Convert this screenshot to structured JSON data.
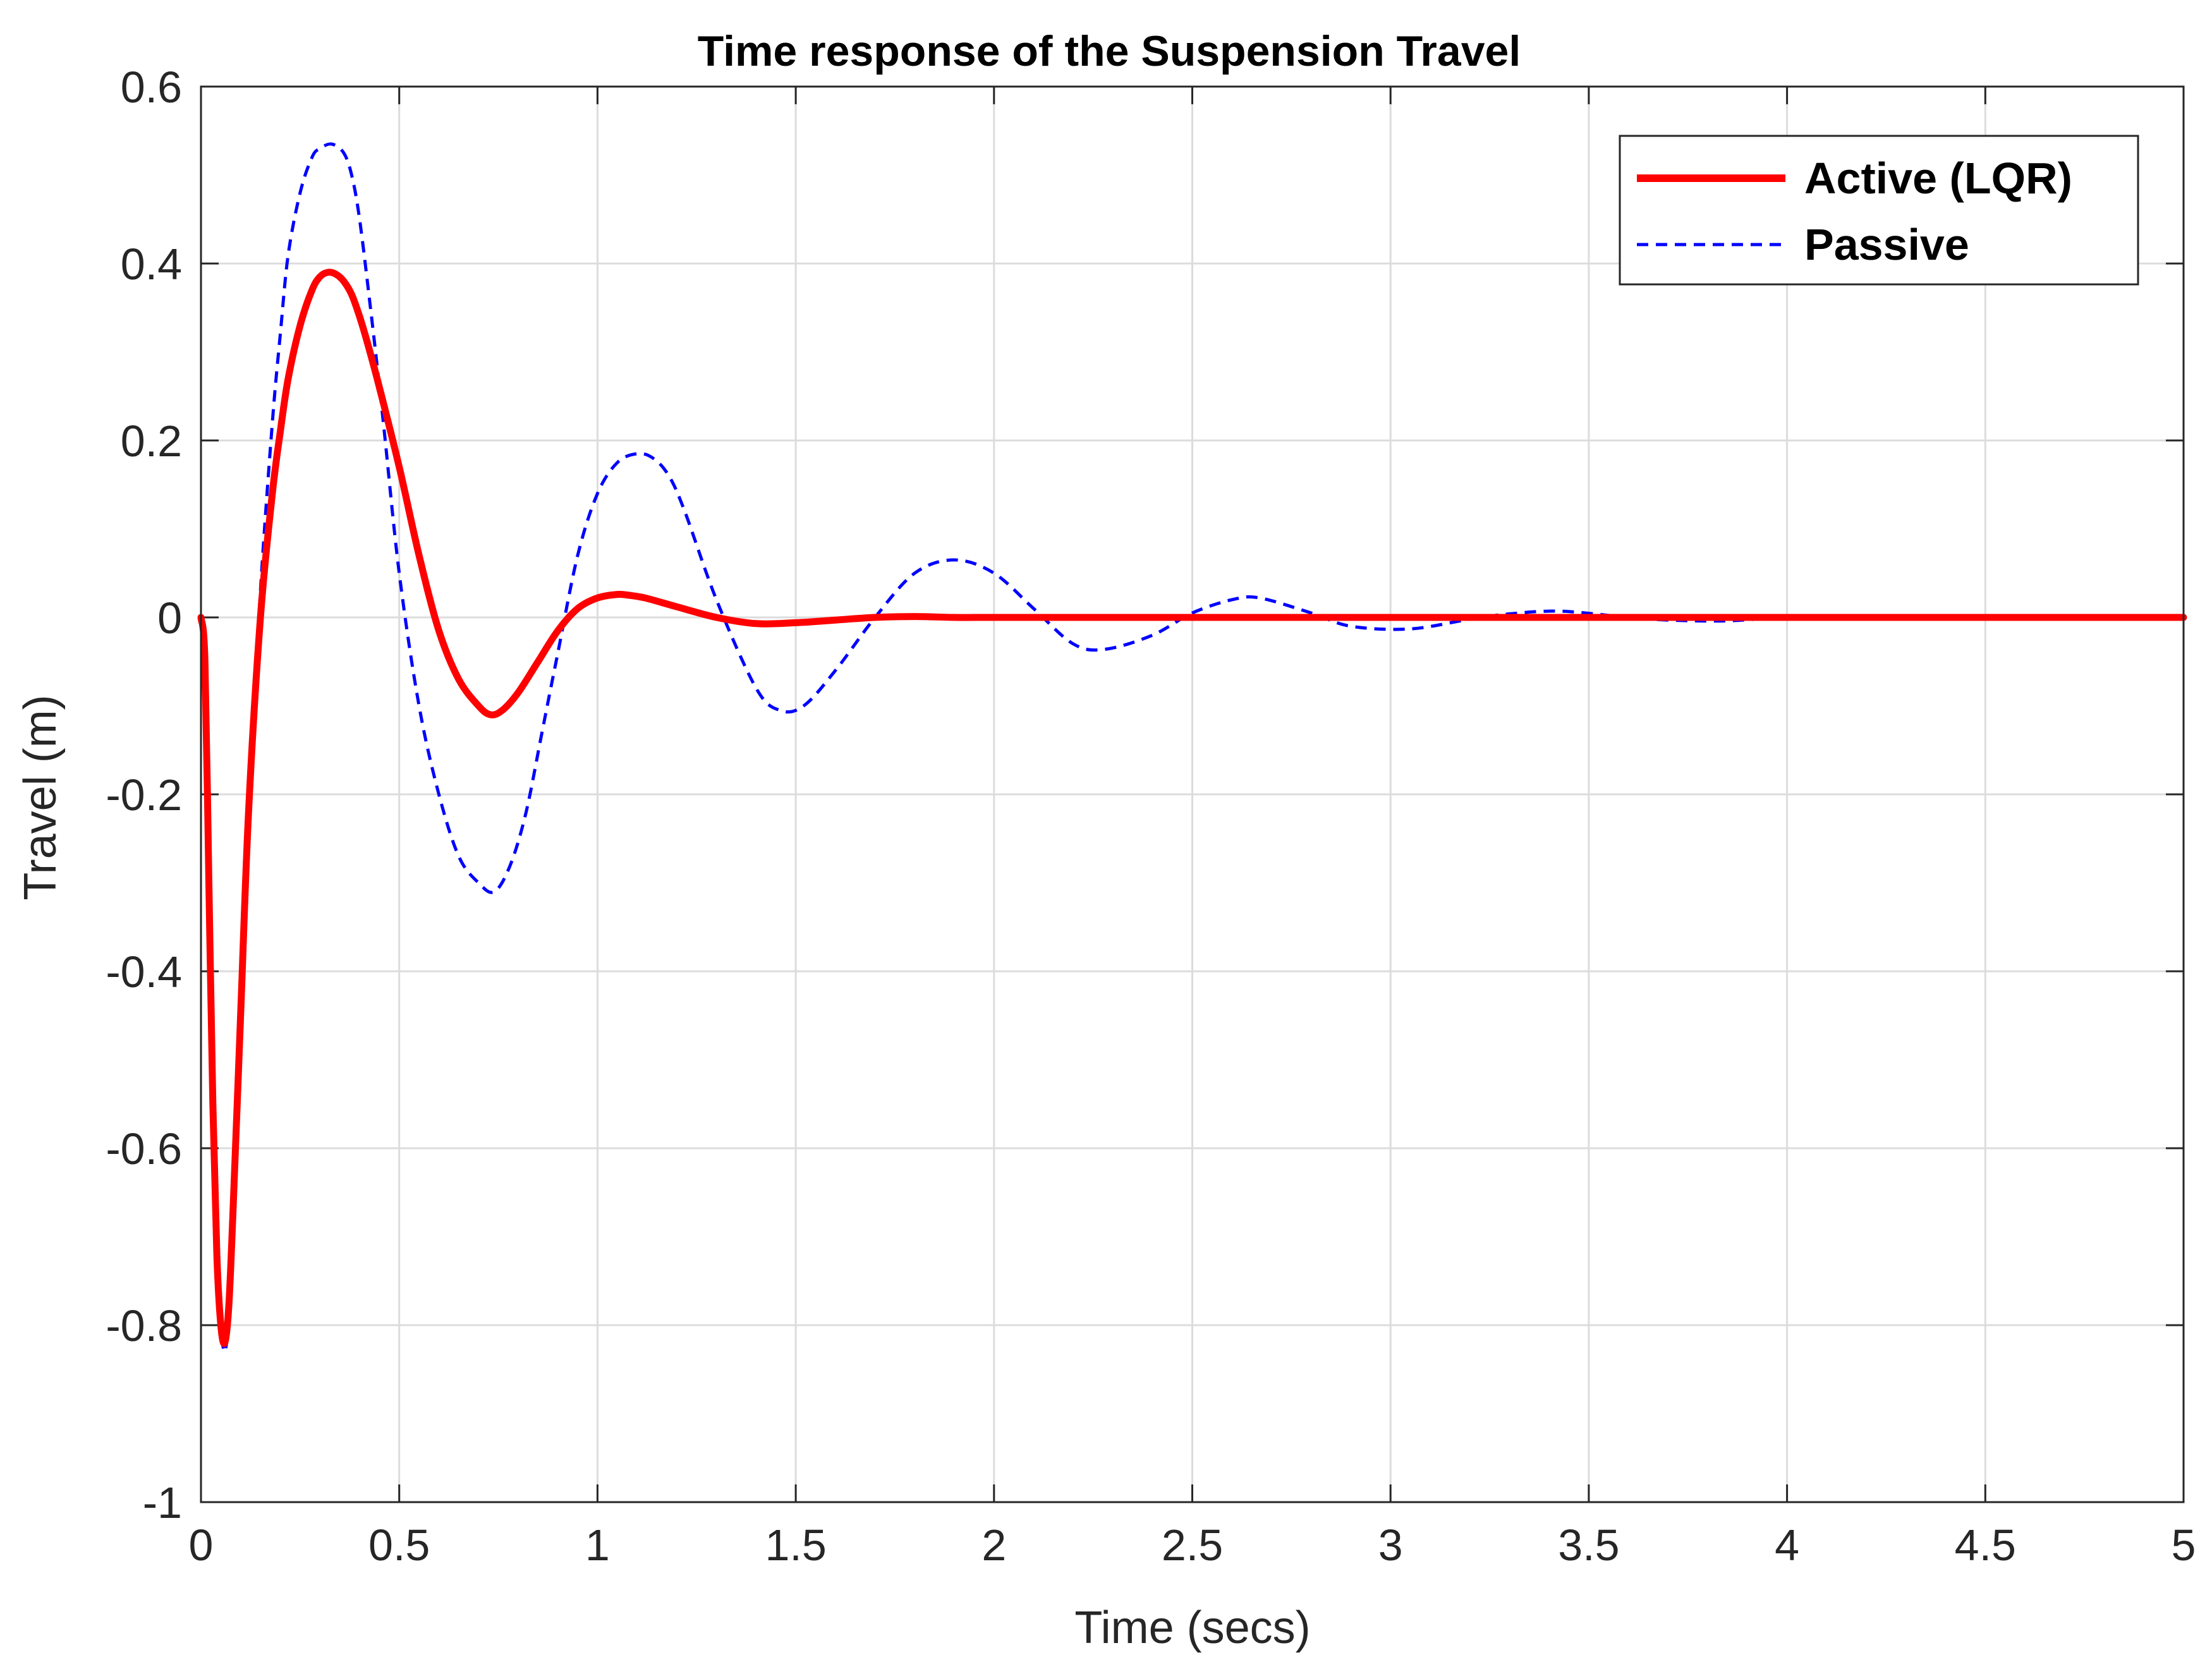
{
  "chart_data": {
    "type": "line",
    "title": "Time response of the Suspension Travel",
    "xlabel": "Time (secs)",
    "ylabel": "Travel (m)",
    "xlim": [
      0,
      5
    ],
    "ylim": [
      -1,
      0.6
    ],
    "xticks": [
      0,
      0.5,
      1,
      1.5,
      2,
      2.5,
      3,
      3.5,
      4,
      4.5,
      5
    ],
    "xtick_labels": [
      "0",
      "0.5",
      "1",
      "1.5",
      "2",
      "2.5",
      "3",
      "3.5",
      "4",
      "4.5",
      "5"
    ],
    "yticks": [
      -1,
      -0.8,
      -0.6,
      -0.4,
      -0.2,
      0,
      0.2,
      0.4,
      0.6
    ],
    "ytick_labels": [
      "-1",
      "-0.8",
      "-0.6",
      "-0.4",
      "-0.2",
      "0",
      "0.2",
      "0.4",
      "0.6"
    ],
    "grid": true,
    "legend_position": "top-right",
    "series": [
      {
        "name": "Active (LQR)",
        "color": "#ff0000",
        "style": "solid",
        "x": [
          0,
          0.01,
          0.02,
          0.03,
          0.04,
          0.05,
          0.06,
          0.07,
          0.08,
          0.1,
          0.12,
          0.15,
          0.18,
          0.2,
          0.22,
          0.25,
          0.28,
          0.3,
          0.32,
          0.34,
          0.36,
          0.38,
          0.4,
          0.42,
          0.45,
          0.5,
          0.55,
          0.6,
          0.65,
          0.7,
          0.73,
          0.76,
          0.8,
          0.85,
          0.9,
          0.95,
          1.0,
          1.05,
          1.08,
          1.12,
          1.2,
          1.3,
          1.4,
          1.5,
          1.6,
          1.7,
          1.8,
          1.9,
          2.0,
          2.2,
          2.5,
          3.0,
          3.5,
          4.0,
          4.5,
          5.0
        ],
        "y": [
          0,
          -0.05,
          -0.3,
          -0.55,
          -0.72,
          -0.8,
          -0.82,
          -0.78,
          -0.68,
          -0.45,
          -0.22,
          0.0,
          0.14,
          0.21,
          0.27,
          0.33,
          0.37,
          0.385,
          0.39,
          0.388,
          0.38,
          0.365,
          0.34,
          0.31,
          0.26,
          0.17,
          0.07,
          -0.015,
          -0.07,
          -0.1,
          -0.11,
          -0.105,
          -0.085,
          -0.05,
          -0.015,
          0.01,
          0.022,
          0.026,
          0.025,
          0.022,
          0.012,
          0.0,
          -0.007,
          -0.006,
          -0.003,
          0.0,
          0.001,
          0.0,
          0.0,
          0.0,
          0.0,
          0.0,
          0.0,
          0.0,
          0.0,
          0.0
        ]
      },
      {
        "name": "Passive",
        "color": "#0000ff",
        "style": "dashed",
        "x": [
          0,
          0.01,
          0.02,
          0.03,
          0.04,
          0.05,
          0.06,
          0.07,
          0.08,
          0.1,
          0.12,
          0.15,
          0.18,
          0.2,
          0.22,
          0.25,
          0.28,
          0.3,
          0.33,
          0.36,
          0.38,
          0.4,
          0.43,
          0.46,
          0.5,
          0.55,
          0.6,
          0.65,
          0.7,
          0.74,
          0.78,
          0.82,
          0.86,
          0.9,
          0.95,
          1.0,
          1.05,
          1.1,
          1.14,
          1.18,
          1.22,
          1.3,
          1.4,
          1.46,
          1.52,
          1.6,
          1.7,
          1.8,
          1.9,
          2.0,
          2.1,
          2.2,
          2.28,
          2.4,
          2.5,
          2.6,
          2.67,
          2.8,
          2.9,
          3.05,
          3.2,
          3.3,
          3.43,
          3.6,
          3.7,
          3.84,
          4.0,
          4.2,
          4.4,
          4.6,
          4.8,
          5.0
        ],
        "y": [
          0,
          -0.05,
          -0.3,
          -0.55,
          -0.72,
          -0.8,
          -0.83,
          -0.79,
          -0.69,
          -0.46,
          -0.22,
          0.03,
          0.22,
          0.32,
          0.41,
          0.48,
          0.52,
          0.53,
          0.535,
          0.525,
          0.5,
          0.45,
          0.34,
          0.22,
          0.05,
          -0.1,
          -0.2,
          -0.27,
          -0.3,
          -0.31,
          -0.28,
          -0.22,
          -0.13,
          -0.04,
          0.07,
          0.14,
          0.175,
          0.185,
          0.18,
          0.16,
          0.12,
          0.02,
          -0.08,
          -0.105,
          -0.1,
          -0.06,
          0.0,
          0.05,
          0.065,
          0.05,
          0.01,
          -0.03,
          -0.036,
          -0.02,
          0.005,
          0.02,
          0.022,
          0.005,
          -0.01,
          -0.013,
          -0.002,
          0.004,
          0.007,
          0.0,
          -0.003,
          -0.004,
          0.0,
          0.002,
          0.0,
          -0.001,
          0.0,
          0.0
        ]
      }
    ]
  }
}
